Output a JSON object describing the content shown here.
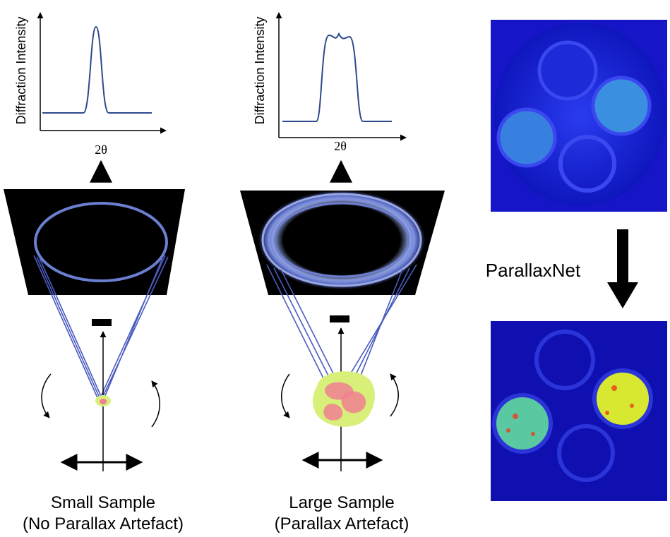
{
  "panels": [
    {
      "y_label": "Diffraction Intensity",
      "x_label": "2θ",
      "caption": [
        "Small Sample",
        "(No Parallax Artefact)"
      ]
    },
    {
      "y_label": "Diffraction Intensity",
      "x_label": "2θ",
      "caption": [
        "Large Sample",
        "(Parallax Artefact)"
      ]
    }
  ],
  "arrow_label": "ParallaxNet"
}
